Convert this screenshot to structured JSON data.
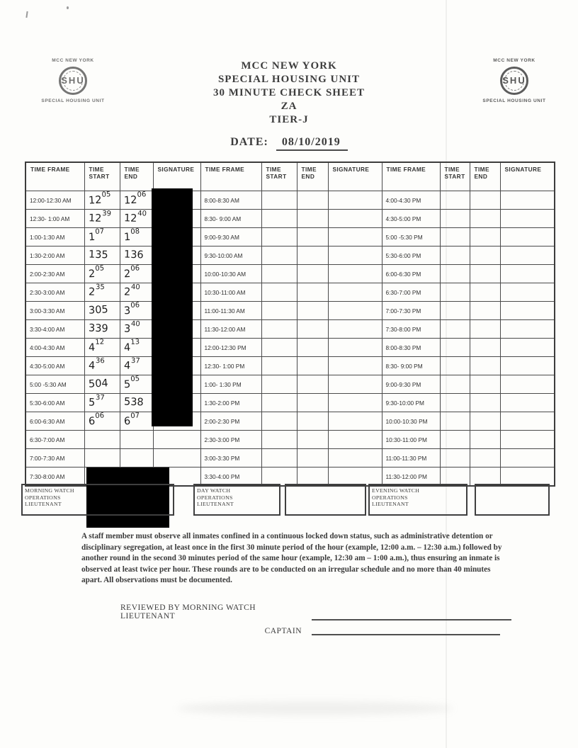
{
  "header": {
    "logo": {
      "top_text": "MCC NEW YORK",
      "seal_text": "SHU",
      "bottom_text": "SPECIAL HOUSING UNIT"
    },
    "title_lines": [
      "MCC NEW YORK",
      "SPECIAL HOUSING UNIT",
      "30 MINUTE CHECK SHEET",
      "ZA",
      "TIER-J"
    ],
    "date": {
      "label": "DATE:",
      "value": "08/10/2019"
    }
  },
  "table": {
    "column_headers": [
      "TIME FRAME",
      "TIME START",
      "TIME END",
      "SIGNATURE"
    ],
    "groups": [
      {
        "rows": [
          {
            "frame": "12:00-12:30 AM",
            "start": "12^05",
            "end": "12^06"
          },
          {
            "frame": "12:30- 1:00 AM",
            "start": "12^39",
            "end": "12^40"
          },
          {
            "frame": "1:00-1:30 AM",
            "start": "1^07",
            "end": "1^08"
          },
          {
            "frame": "1:30-2:00 AM",
            "start": "135",
            "end": "136"
          },
          {
            "frame": "2:00-2:30 AM",
            "start": "2^05",
            "end": "2^06"
          },
          {
            "frame": "2:30-3:00 AM",
            "start": "2^35",
            "end": "2^40"
          },
          {
            "frame": "3:00-3:30 AM",
            "start": "305",
            "end": "3^06"
          },
          {
            "frame": "3:30-4:00 AM",
            "start": "339",
            "end": "3^40"
          },
          {
            "frame": "4:00-4:30 AM",
            "start": "4^12",
            "end": "4^13"
          },
          {
            "frame": "4:30-5:00 AM",
            "start": "4^36",
            "end": "4^37"
          },
          {
            "frame": "5:00 -5:30 AM",
            "start": "504",
            "end": "5^05"
          },
          {
            "frame": "5:30-6:00 AM",
            "start": "5^37",
            "end": "538"
          },
          {
            "frame": "6:00-6:30 AM",
            "start": "6^06",
            "end": "6^07"
          },
          {
            "frame": "6:30-7:00 AM",
            "start": "",
            "end": ""
          },
          {
            "frame": "7:00-7:30 AM",
            "start": "",
            "end": ""
          },
          {
            "frame": "7:30-8:00 AM",
            "start": "",
            "end": ""
          }
        ]
      },
      {
        "rows": [
          {
            "frame": "8:00-8:30 AM",
            "start": "",
            "end": ""
          },
          {
            "frame": "8:30- 9:00 AM",
            "start": "",
            "end": ""
          },
          {
            "frame": "9:00-9:30 AM",
            "start": "",
            "end": ""
          },
          {
            "frame": "9:30-10:00 AM",
            "start": "",
            "end": ""
          },
          {
            "frame": "10:00-10:30 AM",
            "start": "",
            "end": ""
          },
          {
            "frame": "10:30-11:00 AM",
            "start": "",
            "end": ""
          },
          {
            "frame": "11:00-11:30 AM",
            "start": "",
            "end": ""
          },
          {
            "frame": "11:30-12:00 AM",
            "start": "",
            "end": ""
          },
          {
            "frame": "12:00-12:30 PM",
            "start": "",
            "end": ""
          },
          {
            "frame": "12:30- 1:00 PM",
            "start": "",
            "end": ""
          },
          {
            "frame": "1:00- 1:30 PM",
            "start": "",
            "end": ""
          },
          {
            "frame": "1:30-2:00 PM",
            "start": "",
            "end": ""
          },
          {
            "frame": "2:00-2:30 PM",
            "start": "",
            "end": ""
          },
          {
            "frame": "2:30-3:00 PM",
            "start": "",
            "end": ""
          },
          {
            "frame": "3:00-3:30 PM",
            "start": "",
            "end": ""
          },
          {
            "frame": "3:30-4:00 PM",
            "start": "",
            "end": ""
          }
        ]
      },
      {
        "rows": [
          {
            "frame": "4:00-4:30 PM",
            "start": "",
            "end": ""
          },
          {
            "frame": "4:30-5:00 PM",
            "start": "",
            "end": ""
          },
          {
            "frame": "5:00 -5:30 PM",
            "start": "",
            "end": ""
          },
          {
            "frame": "5:30-6:00 PM",
            "start": "",
            "end": ""
          },
          {
            "frame": "6:00-6:30 PM",
            "start": "",
            "end": ""
          },
          {
            "frame": "6:30-7:00 PM",
            "start": "",
            "end": ""
          },
          {
            "frame": "7:00-7:30 PM",
            "start": "",
            "end": ""
          },
          {
            "frame": "7:30-8:00 PM",
            "start": "",
            "end": ""
          },
          {
            "frame": "8:00-8:30 PM",
            "start": "",
            "end": ""
          },
          {
            "frame": "8:30- 9:00 PM",
            "start": "",
            "end": ""
          },
          {
            "frame": "9:00-9:30 PM",
            "start": "",
            "end": ""
          },
          {
            "frame": "9:30-10:00 PM",
            "start": "",
            "end": ""
          },
          {
            "frame": "10:00-10:30 PM",
            "start": "",
            "end": ""
          },
          {
            "frame": "10:30-11:00 PM",
            "start": "",
            "end": ""
          },
          {
            "frame": "11:00-11:30 PM",
            "start": "",
            "end": ""
          },
          {
            "frame": "11:30-12:00 PM",
            "start": "",
            "end": ""
          }
        ]
      }
    ]
  },
  "footer": {
    "watch_boxes": [
      {
        "label": "MORNING WATCH\nOPERATIONS\nLIEUTENANT"
      },
      {
        "label": "DAY WATCH\nOPERATIONS\nLIEUTENANT"
      },
      {
        "label": "EVENING WATCH\nOPERATIONS\nLIEUTENANT"
      }
    ],
    "notice": "A staff member must observe all inmates confined in a continuous locked down status, such as administrative detention or disciplinary segregation, at least once in the first 30 minute period of the hour (example, 12:00 a.m. – 12:30 a.m.) followed by another round in the second 30 minutes period of the same hour (example, 12:30 am – 1:00 a.m.), thus ensuring an inmate is observed at least twice per hour. These rounds are to be conducted on an irregular schedule and no more than 40 minutes apart. All observations must be documented.",
    "review": {
      "reviewed_by_label": "REVIEWED BY MORNING WATCH LIEUTENANT",
      "captain_label": "CAPTAIN"
    }
  }
}
